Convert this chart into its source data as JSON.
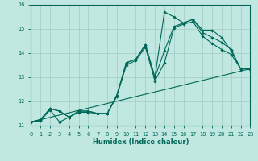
{
  "xlabel": "Humidex (Indice chaleur)",
  "bg_color": "#c0e8e0",
  "line_color": "#006858",
  "grid_color": "#a8d0c8",
  "xlim": [
    0,
    23
  ],
  "ylim": [
    11,
    16
  ],
  "xticks": [
    0,
    1,
    2,
    3,
    4,
    5,
    6,
    7,
    8,
    9,
    10,
    11,
    12,
    13,
    14,
    15,
    16,
    17,
    18,
    19,
    20,
    21,
    22,
    23
  ],
  "yticks": [
    11,
    12,
    13,
    14,
    15,
    16
  ],
  "series": [
    {
      "x": [
        0,
        23
      ],
      "y": [
        11.15,
        13.35
      ],
      "has_marker": false
    },
    {
      "x": [
        0,
        1,
        2,
        3,
        4,
        5,
        6,
        7,
        8,
        9,
        10,
        11,
        12,
        13,
        14,
        15,
        16,
        17,
        18,
        19,
        20,
        21,
        22,
        23
      ],
      "y": [
        11.15,
        11.2,
        11.65,
        11.15,
        11.35,
        11.55,
        11.55,
        11.5,
        11.5,
        12.2,
        13.5,
        13.7,
        14.25,
        12.85,
        13.6,
        15.05,
        15.2,
        15.3,
        14.7,
        14.4,
        14.15,
        13.95,
        13.35,
        13.35
      ],
      "has_marker": true
    },
    {
      "x": [
        0,
        1,
        2,
        3,
        4,
        5,
        6,
        7,
        8,
        9,
        10,
        11,
        12,
        13,
        14,
        15,
        16,
        17,
        18,
        19,
        20,
        21,
        22,
        23
      ],
      "y": [
        11.15,
        11.25,
        11.7,
        11.6,
        11.35,
        11.6,
        11.6,
        11.5,
        11.5,
        12.25,
        13.6,
        13.75,
        14.35,
        13.0,
        14.1,
        15.1,
        15.25,
        15.4,
        14.85,
        14.65,
        14.45,
        14.15,
        13.35,
        13.35
      ],
      "has_marker": true
    },
    {
      "x": [
        0,
        1,
        2,
        3,
        4,
        5,
        6,
        7,
        8,
        9,
        10,
        11,
        12,
        13,
        14,
        15,
        16,
        17,
        18,
        19,
        20,
        21,
        22,
        23
      ],
      "y": [
        11.15,
        11.25,
        11.7,
        11.6,
        11.35,
        11.6,
        11.6,
        11.5,
        11.5,
        12.25,
        13.6,
        13.75,
        14.35,
        13.0,
        15.7,
        15.5,
        15.25,
        15.4,
        14.95,
        14.95,
        14.65,
        14.1,
        13.35,
        13.35
      ],
      "has_marker": true
    }
  ]
}
